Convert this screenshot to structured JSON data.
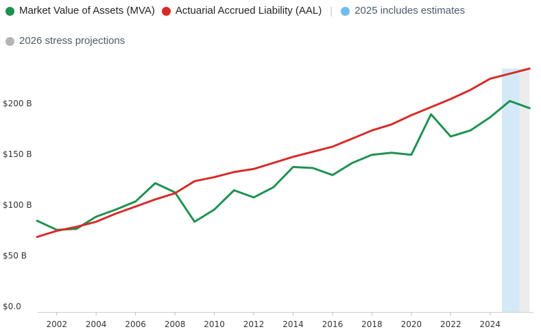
{
  "legend": [
    {
      "label": "Market Value of Assets (MVA)",
      "color": "#1e9150"
    },
    {
      "label": "Actuarial Accrued Liability (AAL)",
      "color": "#d62b28"
    },
    {
      "label": "2025 includes estimates",
      "color": "#6fbde8"
    },
    {
      "label": "2026 stress projections",
      "color": "#b3b6b9"
    }
  ],
  "chart_data": {
    "type": "line",
    "title": "",
    "xlabel": "",
    "ylabel": "",
    "xlim": [
      2001,
      2026.2
    ],
    "ylim": [
      0,
      240
    ],
    "y_ticks": [
      0,
      50,
      100,
      150,
      200
    ],
    "y_tick_labels": [
      "$0.0",
      "$50 B",
      "$100 B",
      "$150 B",
      "$200 B"
    ],
    "x_ticks": [
      2002,
      2004,
      2006,
      2008,
      2010,
      2012,
      2014,
      2016,
      2018,
      2020,
      2022,
      2024
    ],
    "x_tick_labels": [
      "2002",
      "2004",
      "2006",
      "2008",
      "2010",
      "2012",
      "2014",
      "2016",
      "2018",
      "2020",
      "2022",
      "2024"
    ],
    "series": [
      {
        "name": "Market Value of Assets (MVA)",
        "color": "#1e9150",
        "x": [
          2001,
          2002,
          2003,
          2004,
          2005,
          2006,
          2007,
          2008,
          2009,
          2010,
          2011,
          2012,
          2013,
          2014,
          2015,
          2016,
          2017,
          2018,
          2019,
          2020,
          2021,
          2022,
          2023,
          2024,
          2025,
          2026
        ],
        "values": [
          90,
          81,
          82,
          94,
          101,
          109,
          127,
          118,
          89,
          101,
          120,
          113,
          123,
          143,
          142,
          135,
          147,
          155,
          157,
          155,
          195,
          173,
          179,
          192,
          208,
          201
        ]
      },
      {
        "name": "Actuarial Accrued Liability (AAL)",
        "color": "#d62b28",
        "x": [
          2001,
          2002,
          2003,
          2004,
          2005,
          2006,
          2007,
          2008,
          2009,
          2010,
          2011,
          2012,
          2013,
          2014,
          2015,
          2016,
          2017,
          2018,
          2019,
          2020,
          2021,
          2022,
          2023,
          2024,
          2025,
          2026
        ],
        "values": [
          74,
          80,
          84,
          89,
          97,
          104,
          111,
          117,
          129,
          133,
          138,
          141,
          147,
          153,
          158,
          163,
          171,
          179,
          185,
          194,
          202,
          210,
          219,
          230,
          235,
          240
        ]
      }
    ],
    "shaded_regions": [
      {
        "name": "2025 includes estimates",
        "x_from": 2024.6,
        "x_to": 2025.5,
        "color": "#d3e9f7"
      },
      {
        "name": "2026 stress projections",
        "x_from": 2025.5,
        "x_to": 2026.0,
        "color": "#ececec"
      }
    ]
  }
}
